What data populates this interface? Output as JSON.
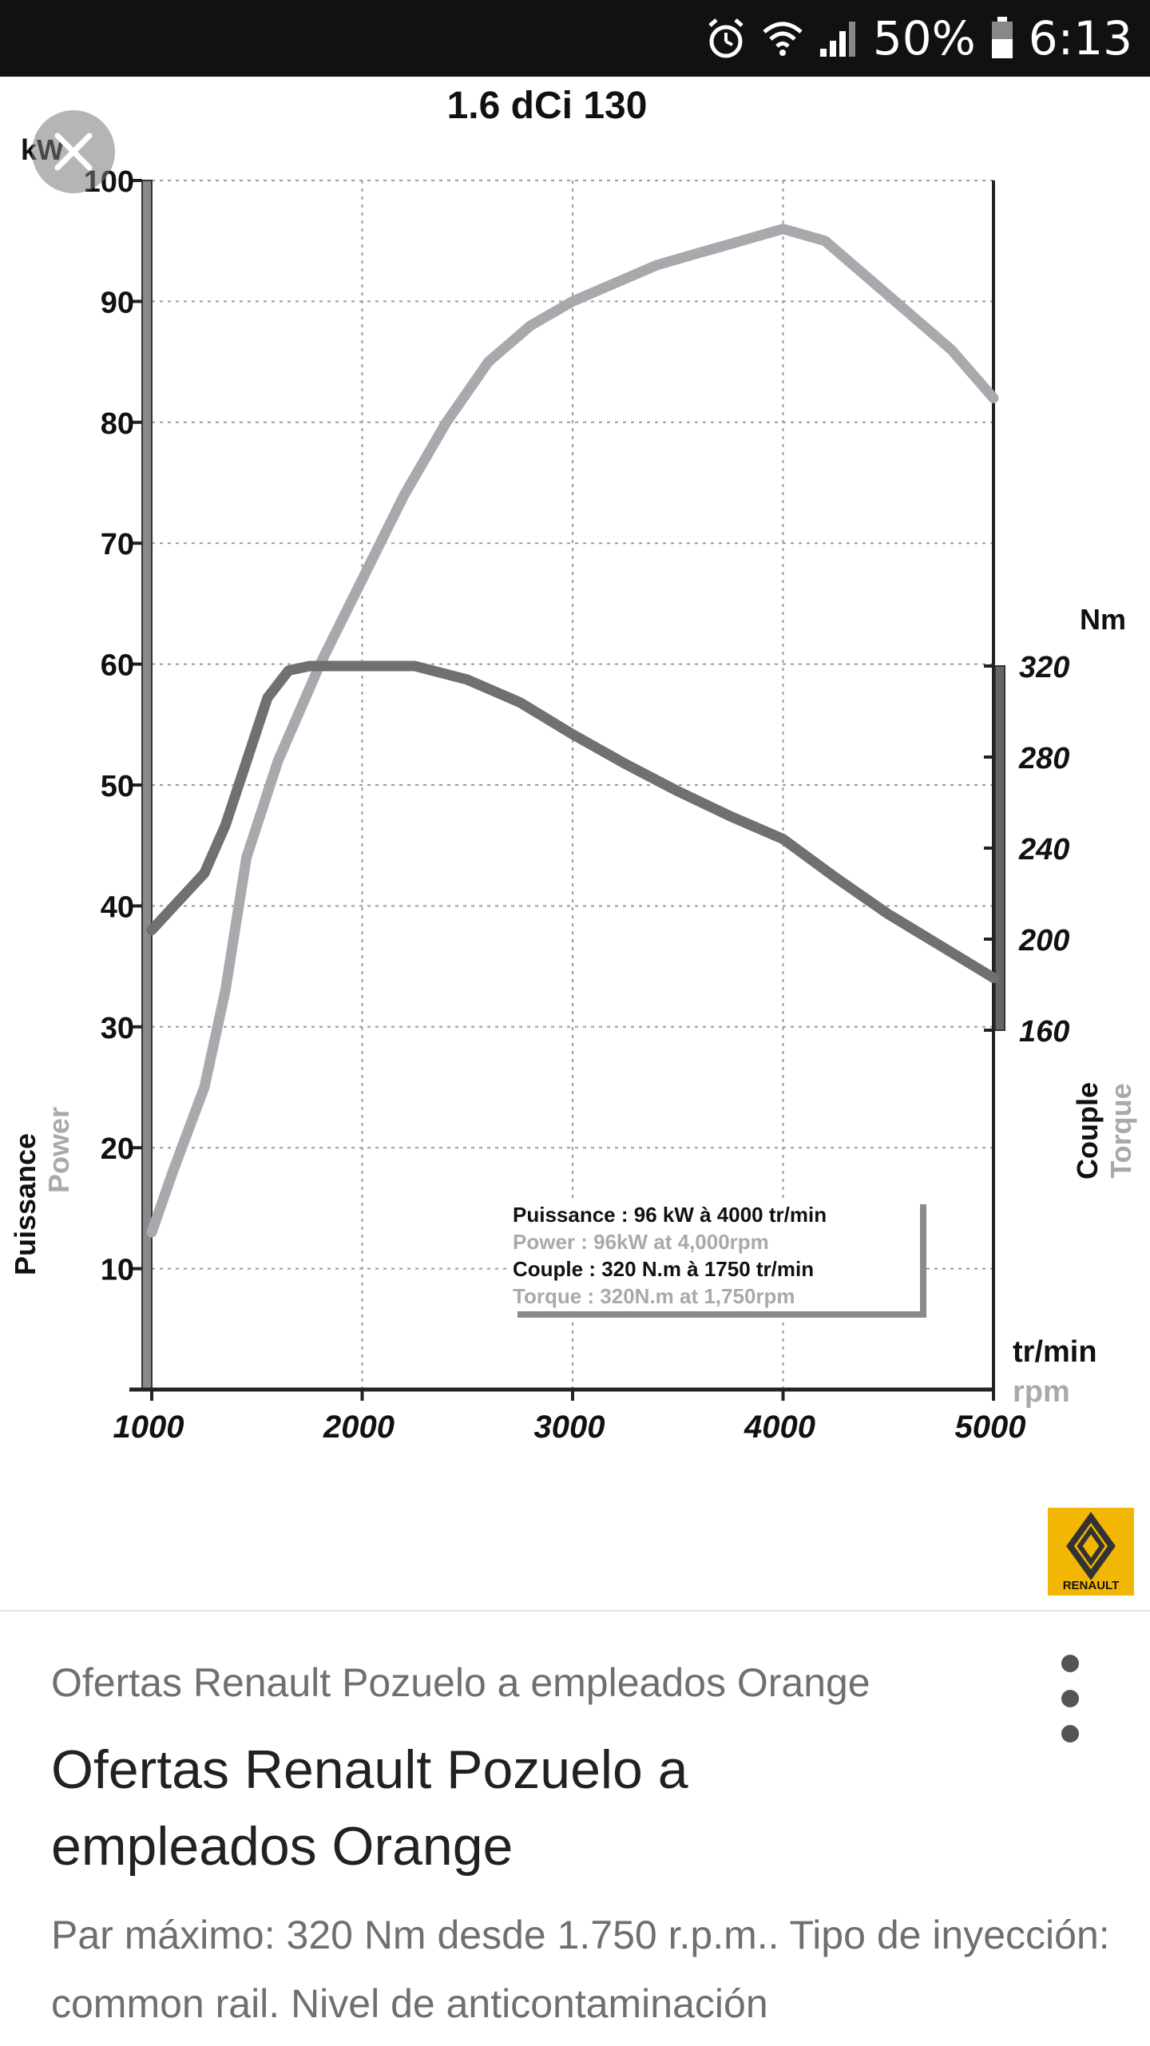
{
  "status_bar": {
    "battery": "50%",
    "time": "6:13",
    "icons": [
      "alarm-icon",
      "wifi-icon",
      "signal-icon",
      "battery-icon"
    ]
  },
  "viewer": {
    "close_icon": "close-icon"
  },
  "chart_data": {
    "type": "line",
    "title": "1.6 dCi 130",
    "x_label": "tr/min",
    "x_label_en": "rpm",
    "x_ticks": [
      1000,
      2000,
      3000,
      4000,
      5000
    ],
    "xlim": [
      1000,
      5000
    ],
    "y_left": {
      "unit": "kW",
      "label": "Puissance",
      "label_en": "Power",
      "ticks": [
        10,
        20,
        30,
        40,
        50,
        60,
        70,
        80,
        90,
        100
      ],
      "ylim": [
        0,
        100
      ]
    },
    "y_right": {
      "unit": "Nm",
      "label": "Couple",
      "label_en": "Torque",
      "ticks": [
        160,
        200,
        240,
        280,
        320
      ],
      "range": [
        160,
        320
      ]
    },
    "grid": true,
    "series": [
      {
        "name": "Power",
        "axis": "left",
        "color": "#a9a9ad",
        "points": [
          [
            1000,
            13
          ],
          [
            1100,
            18
          ],
          [
            1250,
            25
          ],
          [
            1350,
            33
          ],
          [
            1450,
            44
          ],
          [
            1600,
            52
          ],
          [
            1800,
            60
          ],
          [
            2000,
            67
          ],
          [
            2200,
            74
          ],
          [
            2400,
            80
          ],
          [
            2600,
            85
          ],
          [
            2800,
            88
          ],
          [
            3000,
            90
          ],
          [
            3200,
            91.5
          ],
          [
            3400,
            93
          ],
          [
            3600,
            94
          ],
          [
            3800,
            95
          ],
          [
            4000,
            96
          ],
          [
            4200,
            95
          ],
          [
            4400,
            92
          ],
          [
            4600,
            89
          ],
          [
            4800,
            86
          ],
          [
            5000,
            82
          ]
        ]
      },
      {
        "name": "Torque",
        "axis": "right",
        "color": "#707070",
        "points": [
          [
            1000,
            204
          ],
          [
            1100,
            214
          ],
          [
            1250,
            229
          ],
          [
            1350,
            250
          ],
          [
            1450,
            278
          ],
          [
            1550,
            306
          ],
          [
            1650,
            318
          ],
          [
            1750,
            320
          ],
          [
            2000,
            320
          ],
          [
            2250,
            320
          ],
          [
            2500,
            314
          ],
          [
            2750,
            304
          ],
          [
            3000,
            290
          ],
          [
            3250,
            277
          ],
          [
            3500,
            265
          ],
          [
            3750,
            254
          ],
          [
            4000,
            244
          ],
          [
            4250,
            227
          ],
          [
            4500,
            211
          ],
          [
            4750,
            197
          ],
          [
            5000,
            183
          ]
        ]
      }
    ],
    "legend": {
      "placement": "bottom-right",
      "lines": [
        "Puissance : 96 kW à 4000 tr/min",
        "Power : 96kW at 4,000rpm",
        "Couple : 320 N.m à 1750 tr/min",
        "Torque : 320N.m at 1,750rpm"
      ]
    },
    "logo_text": "RENAULT"
  },
  "card": {
    "source": "Ofertas Renault Pozuelo a empleados Orange",
    "title": "Ofertas Renault Pozuelo a empleados Orange",
    "description": "Par máximo: 320 Nm desde 1.750 r.p.m.. Tipo de inyección: common rail. Nivel de anticontaminación",
    "more_icon": "more-vert-icon"
  }
}
